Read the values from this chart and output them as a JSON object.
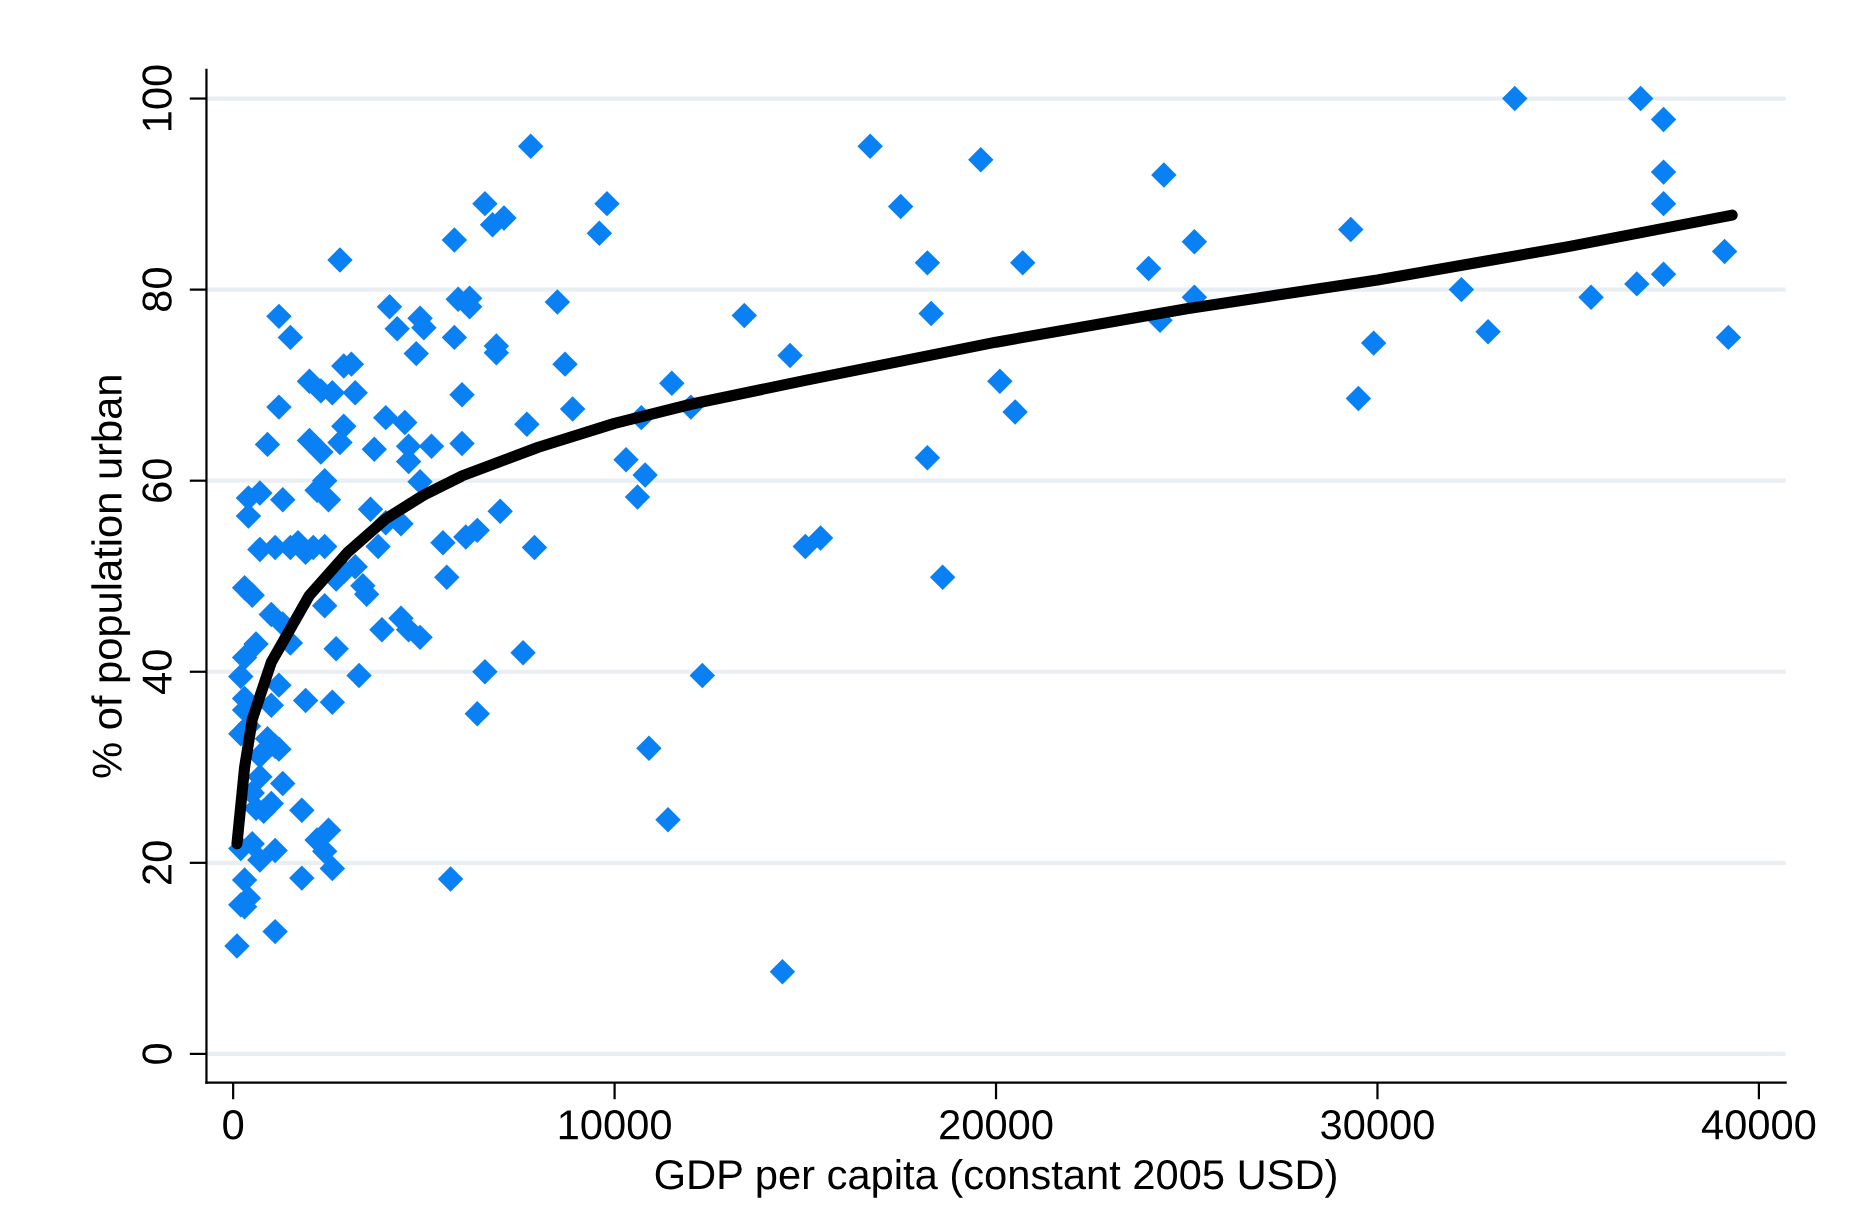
{
  "chart_data": {
    "type": "scatter",
    "xlabel": "GDP per capita (constant 2005 USD)",
    "ylabel": "% of population urban",
    "xlim": [
      -700,
      40700
    ],
    "ylim": [
      -3,
      103
    ],
    "xticks": [
      0,
      10000,
      20000,
      30000,
      40000
    ],
    "yticks": [
      0,
      20,
      40,
      60,
      80,
      100
    ],
    "grid": "y",
    "marker": "diamond",
    "series": [
      {
        "color": "#0a80f5",
        "x": [
          33600,
          36900,
          37500,
          37500,
          37500,
          37500,
          36800,
          35600,
          39100,
          39200,
          32200,
          32900,
          29300,
          29900,
          29500,
          25200,
          25200,
          24400,
          24300,
          24000,
          19600,
          20700,
          20100,
          20500,
          18200,
          18300,
          18200,
          18600,
          17500,
          16700,
          14600,
          15000,
          15400,
          14400,
          13400,
          12000,
          12300,
          11500,
          11400,
          10800,
          10600,
          10700,
          10300,
          10900,
          9800,
          9600,
          8900,
          8700,
          8500,
          7900,
          7700,
          7800,
          7600,
          7100,
          6800,
          6900,
          6900,
          7000,
          6600,
          6400,
          6600,
          6400,
          5700,
          5900,
          6200,
          6200,
          5800,
          5800,
          6000,
          6000,
          6100,
          5500,
          5600,
          5200,
          4900,
          5000,
          4800,
          4900,
          4500,
          4600,
          4300,
          4600,
          4100,
          4000,
          3700,
          4400,
          4000,
          3800,
          3600,
          4400,
          4600,
          4900,
          3900,
          3400,
          3500,
          3300,
          3100,
          2900,
          3200,
          2800,
          2900,
          2600,
          2300,
          2000,
          2300,
          2000,
          2200,
          2400,
          2500,
          2800,
          2900,
          2700,
          3200,
          2400,
          2100,
          1900,
          2400,
          2700,
          1900,
          2600,
          1500,
          1200,
          1200,
          900,
          1300,
          1700,
          1500,
          1100,
          700,
          700,
          400,
          400,
          1000,
          1300,
          1500,
          500,
          300,
          600,
          300,
          200,
          300,
          300,
          400,
          200,
          900,
          1100,
          1200,
          1200,
          1000,
          700,
          700,
          500,
          600,
          800,
          1000,
          1300,
          500,
          700,
          1100,
          1800,
          1800,
          2400,
          2200,
          2500,
          2600,
          200,
          300,
          400,
          200,
          300,
          100,
          1100
        ],
        "values": [
          100,
          100,
          97.8,
          92.3,
          89,
          81.6,
          80.6,
          79.2,
          84,
          75,
          80,
          75.6,
          86.3,
          74.4,
          68.6,
          85,
          79.2,
          92,
          76.8,
          82.2,
          93.6,
          82.8,
          70.4,
          67.2,
          82.8,
          77.5,
          62.4,
          49.9,
          88.7,
          95,
          73.1,
          53.1,
          54,
          8.6,
          77.3,
          67.7,
          39.6,
          70.2,
          24.5,
          60.6,
          58.3,
          66.6,
          62.2,
          32,
          89,
          85.9,
          67.5,
          72.2,
          78.7,
          53,
          65.9,
          95,
          42,
          87.5,
          86.8,
          74.1,
          73.4,
          56.8,
          89,
          54.8,
          40,
          35.6,
          18.3,
          79,
          79.1,
          78.2,
          85.2,
          75,
          69,
          63.9,
          54.1,
          53.5,
          49.9,
          63.6,
          77,
          76,
          73.3,
          59.9,
          66.1,
          63.6,
          75.9,
          62,
          78.2,
          66.6,
          63.3,
          55.5,
          55.6,
          53.1,
          57,
          45.6,
          44.4,
          43.6,
          44.4,
          49,
          48.1,
          39.6,
          72.2,
          72,
          69.2,
          83.1,
          65.7,
          69.2,
          69.4,
          70.4,
          63,
          64.2,
          59,
          60,
          58,
          64,
          50.5,
          49.7,
          51,
          53.1,
          53,
          52.5,
          46.9,
          42.4,
          37,
          36.8,
          75,
          77.2,
          67.7,
          63.8,
          58,
          53.5,
          53,
          53,
          52.8,
          58.7,
          58.2,
          56.3,
          46,
          45,
          43,
          48,
          48.8,
          42.9,
          41.5,
          39.5,
          37.2,
          36,
          34.3,
          33.5,
          33,
          32.2,
          31.9,
          38.6,
          36.5,
          31.2,
          29,
          27.3,
          25.7,
          25.4,
          26.2,
          28.3,
          22,
          20.3,
          21.3,
          25.5,
          18.4,
          21.2,
          22.4,
          23.4,
          19.4,
          21.5,
          18.2,
          16.3,
          15.6,
          15.4,
          11.3,
          12.8
        ]
      },
      {
        "type": "line",
        "color": "#000000",
        "marker": "none",
        "line_style": "solid",
        "x": [
          100,
          300,
          500,
          1000,
          2000,
          3000,
          4000,
          5000,
          6000,
          8000,
          10000,
          12000,
          15000,
          20000,
          25000,
          30000,
          35000,
          39300
        ],
        "values": [
          22,
          30,
          35,
          41,
          48,
          52.5,
          56,
          58.5,
          60.5,
          63.5,
          66,
          68,
          70.5,
          74.5,
          78,
          81,
          84.5,
          87.8
        ]
      }
    ]
  }
}
